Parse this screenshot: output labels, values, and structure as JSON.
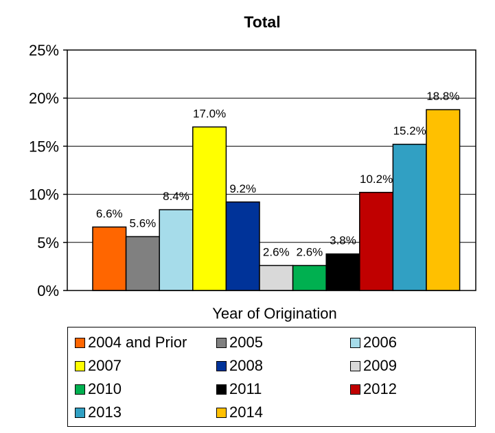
{
  "chart_data": {
    "type": "bar",
    "title": "Total",
    "xlabel": "Year of Origination",
    "ylabel": "",
    "ylim": [
      0,
      25
    ],
    "yticks": [
      "0%",
      "5%",
      "10%",
      "15%",
      "20%",
      "25%"
    ],
    "grid": true,
    "legend_position": "bottom",
    "categories": [
      "2004 and Prior",
      "2005",
      "2006",
      "2007",
      "2008",
      "2009",
      "2010",
      "2011",
      "2012",
      "2013",
      "2014"
    ],
    "values": [
      6.6,
      5.6,
      8.4,
      17.0,
      9.2,
      2.6,
      2.6,
      3.8,
      10.2,
      15.2,
      18.8
    ],
    "labels": [
      "6.6%",
      "5.6%",
      "8.4%",
      "17.0%",
      "9.2%",
      "2.6%",
      "2.6%",
      "3.8%",
      "10.2%",
      "15.2%",
      "18.8%"
    ],
    "colors": [
      "#ff6600",
      "#808080",
      "#a6dcea",
      "#ffff00",
      "#003399",
      "#d9d9d9",
      "#00b050",
      "#000000",
      "#c00000",
      "#31a0c3",
      "#ffc000"
    ]
  }
}
